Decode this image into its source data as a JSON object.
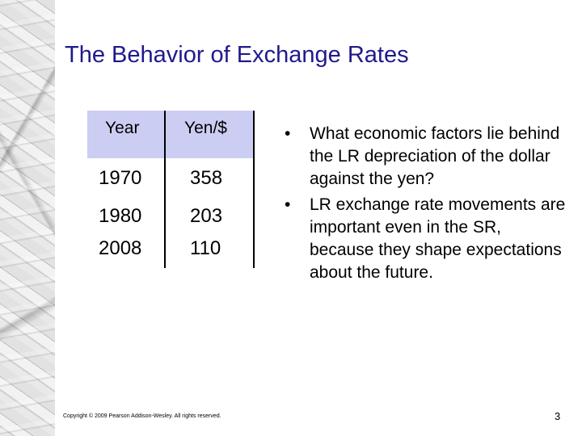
{
  "slide": {
    "title": "The Behavior of Exchange Rates",
    "table": {
      "headers": [
        "Year",
        "Yen/$"
      ],
      "rows": [
        [
          "1970",
          "358"
        ],
        [
          "1980",
          "203"
        ],
        [
          "2008",
          "110"
        ]
      ]
    },
    "bullets": [
      {
        "marker": "•",
        "text": "What economic factors lie behind the LR depreciation of the dollar against the yen?"
      },
      {
        "marker": "•",
        "text": "LR exchange rate movements are important even in the SR, because they shape expectations about the future."
      }
    ],
    "footer": "Copyright © 2009 Pearson Addison-Wesley. All rights reserved.",
    "page_number": "3",
    "colors": {
      "title": "#1f1a8c",
      "table_header_band": "#cccdf2"
    }
  }
}
